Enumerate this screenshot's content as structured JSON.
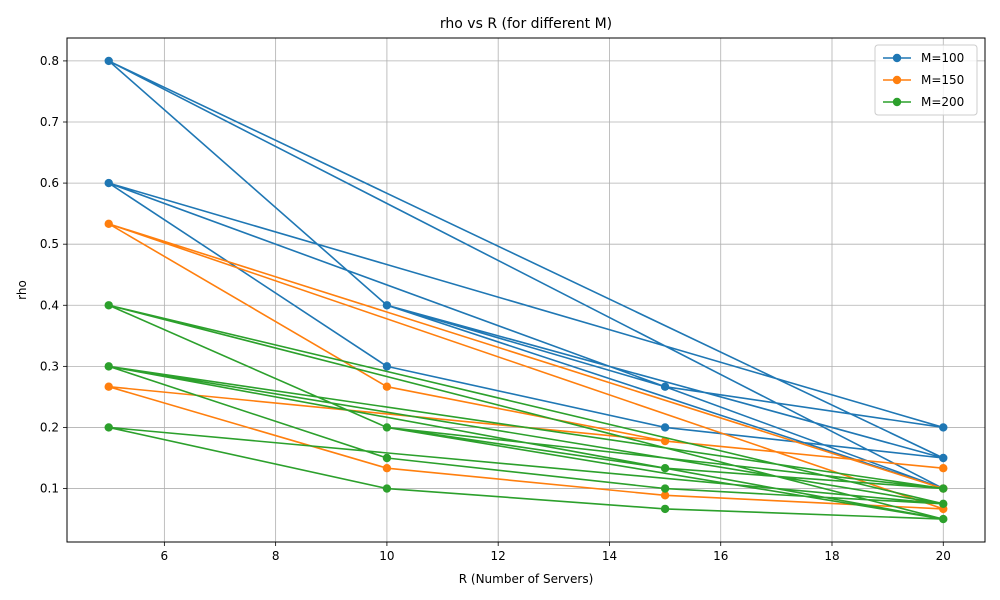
{
  "chart_data": {
    "type": "line",
    "title": "rho vs R (for different M)",
    "xlabel": "R (Number of Servers)",
    "ylabel": "rho",
    "xlim": [
      4.25,
      20.75
    ],
    "ylim": [
      0.0125,
      0.8375
    ],
    "xticks": [
      6,
      8,
      10,
      12,
      14,
      16,
      18,
      20
    ],
    "xtick_labels": [
      "6",
      "8",
      "10",
      "12",
      "14",
      "16",
      "18",
      "20"
    ],
    "yticks": [
      0.1,
      0.2,
      0.3,
      0.4,
      0.5,
      0.6,
      0.7,
      0.8
    ],
    "ytick_labels": [
      "0.1",
      "0.2",
      "0.3",
      "0.4",
      "0.5",
      "0.6",
      "0.7",
      "0.8"
    ],
    "grid": true,
    "legend_position": "top-right",
    "marker": "circle",
    "series": [
      {
        "name": "M=100",
        "color": "#1f77b4",
        "x": [
          5,
          5,
          10,
          10,
          15,
          15,
          20,
          20
        ],
        "y": [
          0.8,
          0.6,
          0.4,
          0.3,
          0.2667,
          0.2,
          0.2,
          0.15
        ],
        "points": [
          [
            5,
            0.8
          ],
          [
            10,
            0.4
          ],
          [
            15,
            0.2667
          ],
          [
            20,
            0.2
          ],
          [
            5,
            0.6
          ],
          [
            10,
            0.3
          ],
          [
            15,
            0.2
          ],
          [
            20,
            0.15
          ],
          [
            5,
            0.8
          ],
          [
            20,
            0.1
          ],
          [
            5,
            0.6
          ],
          [
            15,
            0.2667
          ],
          [
            20,
            0.1
          ],
          [
            10,
            0.4
          ],
          [
            20,
            0.15
          ]
        ]
      },
      {
        "name": "M=150",
        "color": "#ff7f0e",
        "x": [
          5,
          5,
          10,
          15,
          15,
          20,
          20,
          20
        ],
        "y": [
          0.5333,
          0.2667,
          0.2667,
          0.1778,
          0.0889,
          0.1333,
          0.1,
          0.0667
        ],
        "points": [
          [
            5,
            0.5333
          ],
          [
            10,
            0.2667
          ],
          [
            15,
            0.1778
          ],
          [
            20,
            0.1333
          ],
          [
            5,
            0.2667
          ],
          [
            10,
            0.1333
          ],
          [
            15,
            0.0889
          ],
          [
            20,
            0.0667
          ],
          [
            5,
            0.5333
          ],
          [
            20,
            0.1
          ]
        ]
      },
      {
        "name": "M=200",
        "color": "#2ca02c",
        "x": [
          5,
          5,
          5,
          10,
          10,
          10,
          15,
          15,
          15,
          20,
          20,
          20
        ],
        "y": [
          0.4,
          0.3,
          0.2,
          0.2,
          0.15,
          0.1,
          0.1333,
          0.1,
          0.0667,
          0.1,
          0.075,
          0.05
        ],
        "points": [
          [
            5,
            0.4
          ],
          [
            10,
            0.2
          ],
          [
            15,
            0.1333
          ],
          [
            20,
            0.1
          ],
          [
            5,
            0.3
          ],
          [
            10,
            0.15
          ],
          [
            15,
            0.1
          ],
          [
            20,
            0.075
          ],
          [
            5,
            0.2
          ],
          [
            10,
            0.1
          ],
          [
            15,
            0.0667
          ],
          [
            20,
            0.05
          ],
          [
            5,
            0.4
          ],
          [
            20,
            0.075
          ],
          [
            5,
            0.3
          ],
          [
            15,
            0.1333
          ],
          [
            20,
            0.05
          ],
          [
            10,
            0.2
          ],
          [
            20,
            0.1
          ]
        ]
      }
    ]
  }
}
